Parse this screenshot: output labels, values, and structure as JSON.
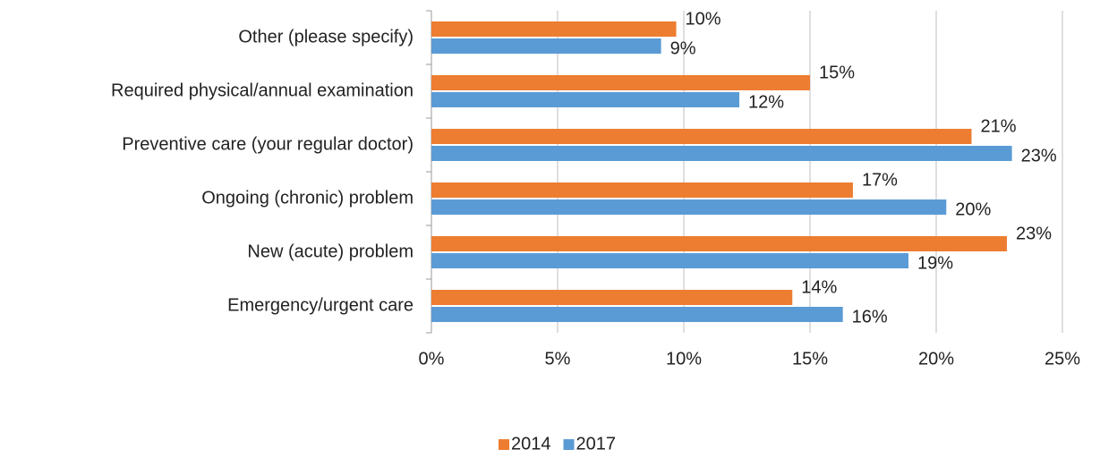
{
  "chart_data": {
    "type": "bar",
    "orientation": "horizontal",
    "categories": [
      "Other (please specify)",
      "Required physical/annual examination",
      "Preventive care (your regular doctor)",
      "Ongoing (chronic) problem",
      "New (acute) problem",
      "Emergency/urgent care"
    ],
    "series": [
      {
        "name": "2014",
        "color": "#ed7d31",
        "values": [
          9.7,
          15.0,
          21.4,
          16.7,
          22.8,
          14.3
        ],
        "value_labels": [
          "10%",
          "15%",
          "21%",
          "17%",
          "23%",
          "14%"
        ]
      },
      {
        "name": "2017",
        "color": "#5b9bd5",
        "values": [
          9.1,
          12.2,
          23.0,
          20.4,
          18.9,
          16.3
        ],
        "value_labels": [
          "9%",
          "12%",
          "23%",
          "20%",
          "19%",
          "16%"
        ]
      }
    ],
    "xlim": [
      0,
      25
    ],
    "xticks": [
      {
        "value": 0,
        "label": "0%"
      },
      {
        "value": 5,
        "label": "5%"
      },
      {
        "value": 10,
        "label": "10%"
      },
      {
        "value": 15,
        "label": "15%"
      },
      {
        "value": 20,
        "label": "20%"
      },
      {
        "value": 25,
        "label": "25%"
      }
    ],
    "grid": true,
    "legend": "bottom"
  }
}
